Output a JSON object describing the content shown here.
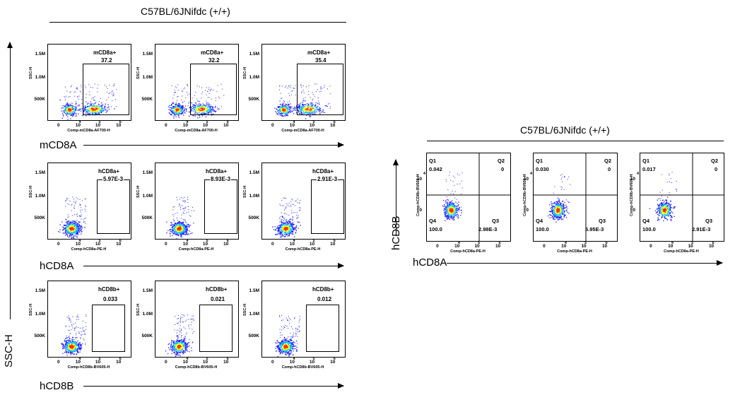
{
  "left_title": "C57BL/6JNifdc (+/+)",
  "right_title": "C57BL/6JNifdc (+/+)",
  "left_y_label": "SSC-H",
  "right_y_label": "hCD8B",
  "right_x_label": "hCD8A",
  "y_ticks": [
    "1.5M",
    "1.0M",
    "500K"
  ],
  "x_ticks": [
    "0",
    "10",
    "4",
    "10",
    "5",
    "10",
    "6"
  ],
  "quad_x_ticks": [
    "0",
    "10",
    "4",
    "10",
    "5",
    "10",
    "6"
  ],
  "quad_y_ticks": [
    "10",
    "4",
    "0"
  ],
  "rows": [
    {
      "marker_label": "mCD8A",
      "x_axis_name": "Comp-mCD8a-AF700-H",
      "y_axis_name": "SSC-H",
      "gate_name": "mCD8a+",
      "values": [
        "37.2",
        "32.2",
        "35.4"
      ],
      "population": "two"
    },
    {
      "marker_label": "hCD8A",
      "x_axis_name": "Comp-hCD8a-PE-H",
      "y_axis_name": "SSC-H",
      "gate_name": "hCD8a+",
      "values": [
        "5.97E-3",
        "8.93E-3",
        "2.91E-3"
      ],
      "population": "one"
    },
    {
      "marker_label": "hCD8B",
      "x_axis_name": "Comp-hCD8b-BV605-H",
      "y_axis_name": "SSC-H",
      "gate_name": "hCD8b+",
      "values": [
        "0.033",
        "0.021",
        "0.012"
      ],
      "population": "one"
    }
  ],
  "quadrants": {
    "x_axis_name": "Comp-hCD8a-PE-H",
    "y_axis_name": "Comp-hCD8b-BV605-H",
    "labels": [
      "Q1",
      "Q2",
      "Q3",
      "Q4"
    ],
    "panels": [
      {
        "q1": "0.042",
        "q2": "0",
        "q3": "2.98E-3",
        "q4": "100.0"
      },
      {
        "q1": "0.030",
        "q2": "0",
        "q3": "5.95E-3",
        "q4": "100.0"
      },
      {
        "q1": "0.017",
        "q2": "0",
        "q3": "2.91E-3",
        "q4": "100.0"
      }
    ]
  },
  "chart_data": {
    "type": "scatter",
    "description_free": true,
    "gates": [
      {
        "row": "mCD8A",
        "gate": "mCD8a+",
        "percent": [
          37.2,
          32.2,
          35.4
        ]
      },
      {
        "row": "hCD8A",
        "gate": "hCD8a+",
        "percent": [
          "5.97E-3",
          "8.93E-3",
          "2.91E-3"
        ]
      },
      {
        "row": "hCD8B",
        "gate": "hCD8b+",
        "percent": [
          0.033,
          0.021,
          0.012
        ]
      }
    ],
    "quadrants": [
      {
        "Q1": 0.042,
        "Q2": 0,
        "Q3": "2.98E-3",
        "Q4": 100.0
      },
      {
        "Q1": 0.03,
        "Q2": 0,
        "Q3": "5.95E-3",
        "Q4": 100.0
      },
      {
        "Q1": 0.017,
        "Q2": 0,
        "Q3": "2.91E-3",
        "Q4": 100.0
      }
    ],
    "colors": {
      "density_low": "#1a1aff",
      "density_mid": "#00c8ff",
      "density_high": "#ffff00",
      "density_peak": "#ff2a00"
    }
  }
}
